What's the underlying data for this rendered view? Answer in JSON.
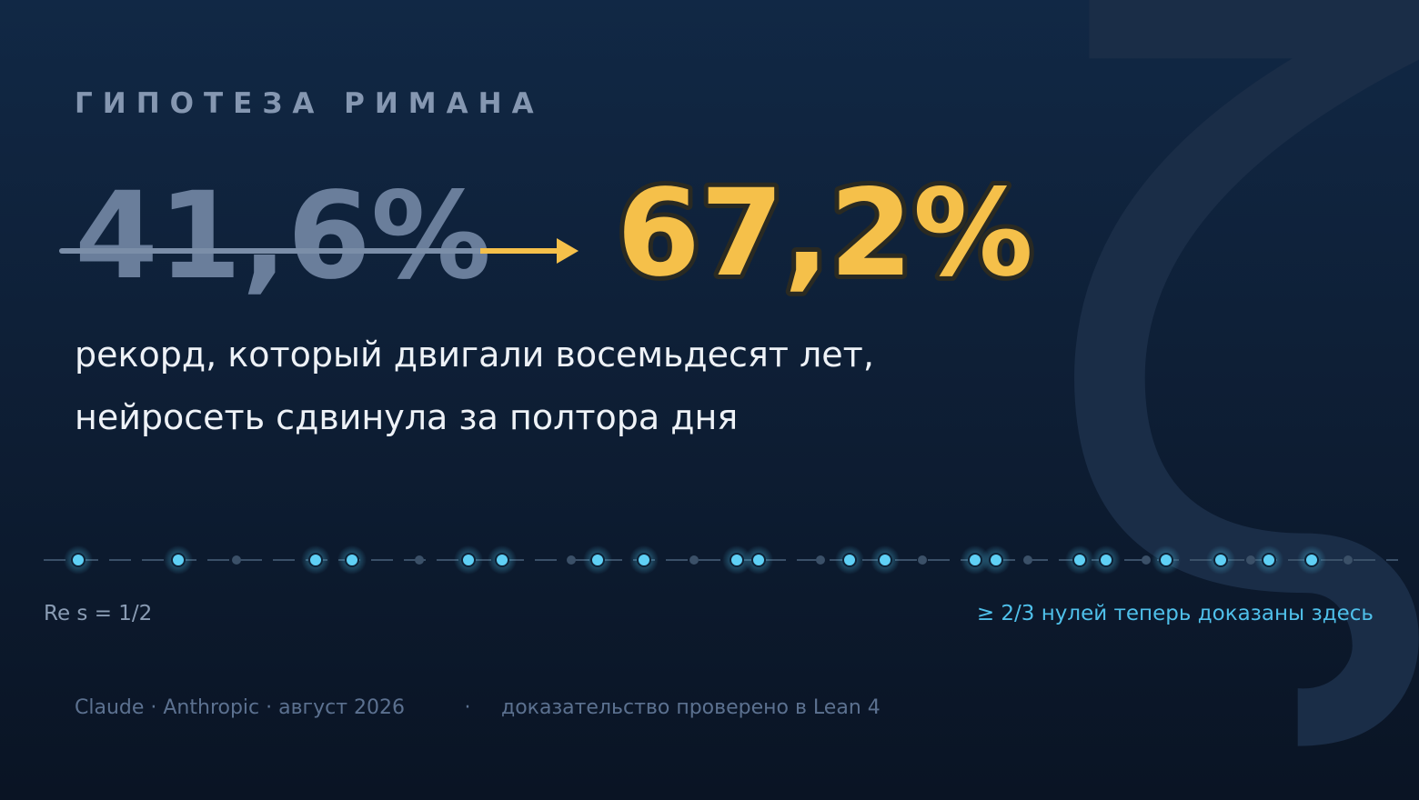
{
  "background_symbol": "ζ",
  "header": {
    "title": "ГИПОТЕЗА РИМАНА"
  },
  "headline": {
    "old_value": "41,6%",
    "new_value": "67,2%"
  },
  "subtitle": {
    "lines": [
      "рекорд, который двигали восемьдесят лет,",
      "нейросеть сдвинула за полтора дня"
    ]
  },
  "critical_line": {
    "left_label": "Re s = 1/2",
    "right_label": "≥ 2/3 нулей теперь доказаны здесь"
  },
  "footer": {
    "credit": "Claude · Anthropic · август 2026",
    "separator": "·",
    "note": "доказательство проверено в Lean 4"
  }
}
